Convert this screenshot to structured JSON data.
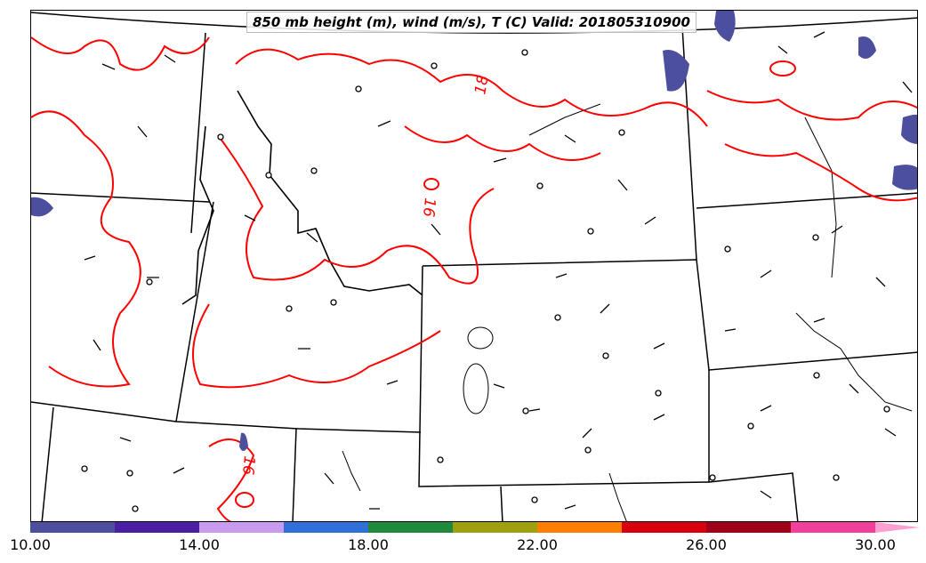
{
  "title": "850 mb height (m), wind (m/s), T (C) Valid: 201805310900",
  "contour_labels": [
    "18",
    "16",
    "16"
  ],
  "colorbar": {
    "tick_labels": [
      "10.00",
      "14.00",
      "18.00",
      "22.00",
      "26.00",
      "30.00"
    ],
    "colors": [
      "#4b4f9e",
      "#4b1fa3",
      "#c89bf0",
      "#2f6fd8",
      "#1d8a3c",
      "#9ea00f",
      "#ff7f00",
      "#d9000f",
      "#a0001a",
      "#f0409a",
      "#ff9fd0"
    ]
  },
  "colors": {
    "temperature_contour": "#ff0000",
    "boundary": "#000000",
    "high_wind_fill": "#4b4f9e"
  }
}
